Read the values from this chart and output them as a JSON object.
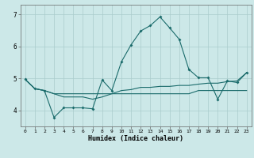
{
  "xlabel": "Humidex (Indice chaleur)",
  "bg_color": "#cce8e8",
  "line_color": "#1a6b6b",
  "grid_color": "#aacccc",
  "x_values": [
    0,
    1,
    2,
    3,
    4,
    5,
    6,
    7,
    8,
    9,
    10,
    11,
    12,
    13,
    14,
    15,
    16,
    17,
    18,
    19,
    20,
    21,
    22,
    23
  ],
  "line1": [
    4.97,
    4.68,
    4.62,
    3.78,
    4.08,
    4.08,
    4.08,
    4.05,
    4.95,
    4.62,
    5.52,
    6.05,
    6.48,
    6.65,
    6.92,
    6.58,
    6.22,
    5.28,
    5.02,
    5.02,
    4.35,
    4.92,
    4.87,
    5.18
  ],
  "line2": [
    4.97,
    4.68,
    4.62,
    4.52,
    4.52,
    4.52,
    4.52,
    4.52,
    4.52,
    4.52,
    4.52,
    4.52,
    4.52,
    4.52,
    4.52,
    4.52,
    4.52,
    4.52,
    4.62,
    4.62,
    4.62,
    4.62,
    4.62,
    4.62
  ],
  "line3": [
    4.97,
    4.68,
    4.62,
    4.52,
    4.42,
    4.42,
    4.42,
    4.35,
    4.42,
    4.52,
    4.62,
    4.65,
    4.72,
    4.72,
    4.75,
    4.75,
    4.78,
    4.78,
    4.82,
    4.85,
    4.85,
    4.9,
    4.92,
    5.18
  ],
  "ylim": [
    3.5,
    7.3
  ],
  "yticks": [
    4,
    5,
    6,
    7
  ],
  "xticks": [
    0,
    1,
    2,
    3,
    4,
    5,
    6,
    7,
    8,
    9,
    10,
    11,
    12,
    13,
    14,
    15,
    16,
    17,
    18,
    19,
    20,
    21,
    22,
    23
  ]
}
